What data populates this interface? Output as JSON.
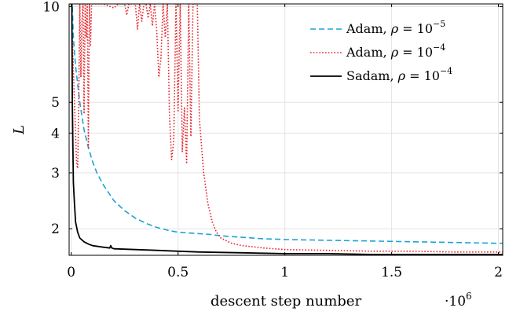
{
  "chart_data": {
    "type": "line",
    "title": "",
    "xlabel": "descent step number",
    "ylabel": "L",
    "x_multiplier": "·10⁶",
    "x_multiplier_base": "·10",
    "x_multiplier_exp": "6",
    "xlim": [
      -0.01,
      2.02
    ],
    "ylim": [
      1.65,
      10.2
    ],
    "yscale": "log",
    "grid": true,
    "legend_position": "top-right",
    "x_ticks": [
      0,
      0.5,
      1,
      1.5,
      2
    ],
    "x_tick_labels": [
      "0",
      "0.5",
      "1",
      "1.5",
      "2"
    ],
    "y_ticks": [
      2,
      3,
      4,
      5,
      10
    ],
    "y_tick_labels": [
      "2",
      "3",
      "4",
      "5",
      "10"
    ],
    "series": [
      {
        "name": "Adam, ρ = 10⁻⁵",
        "legend_prefix": "Adam, ",
        "legend_symbol": "ρ",
        "legend_base": " = 10",
        "legend_exp": "−5",
        "color": "#1ba3d6",
        "dash": "dashed",
        "x": [
          0.005,
          0.01,
          0.02,
          0.04,
          0.06,
          0.08,
          0.1,
          0.12,
          0.15,
          0.2,
          0.25,
          0.3,
          0.35,
          0.4,
          0.45,
          0.5,
          0.55,
          0.6,
          0.65,
          0.7,
          0.8,
          0.9,
          1.0,
          1.2,
          1.4,
          1.6,
          1.8,
          2.0,
          2.02
        ],
        "y": [
          10.0,
          8.0,
          6.5,
          5.0,
          4.1,
          3.6,
          3.25,
          3.0,
          2.75,
          2.45,
          2.28,
          2.16,
          2.08,
          2.02,
          1.98,
          1.95,
          1.94,
          1.93,
          1.92,
          1.9,
          1.88,
          1.86,
          1.85,
          1.84,
          1.83,
          1.82,
          1.81,
          1.8,
          1.8
        ]
      },
      {
        "name": "Adam, ρ = 10⁻⁴",
        "legend_prefix": "Adam, ",
        "legend_symbol": "ρ",
        "legend_base": " = 10",
        "legend_exp": "−4",
        "color": "#e8242b",
        "dash": "dotted",
        "x": [
          0.005,
          0.015,
          0.025,
          0.03,
          0.035,
          0.04,
          0.045,
          0.05,
          0.055,
          0.06,
          0.065,
          0.07,
          0.075,
          0.08,
          0.085,
          0.09,
          0.095,
          0.1,
          0.105,
          0.11,
          0.12,
          0.15,
          0.2,
          0.22,
          0.23,
          0.25,
          0.26,
          0.27,
          0.28,
          0.29,
          0.3,
          0.31,
          0.32,
          0.33,
          0.34,
          0.35,
          0.36,
          0.37,
          0.38,
          0.39,
          0.4,
          0.41,
          0.42,
          0.43,
          0.44,
          0.45,
          0.46,
          0.47,
          0.48,
          0.49,
          0.5,
          0.51,
          0.52,
          0.53,
          0.54,
          0.55,
          0.56,
          0.57,
          0.58,
          0.59,
          0.6,
          0.62,
          0.64,
          0.66,
          0.68,
          0.7,
          0.75,
          0.8,
          0.9,
          1.0,
          1.2,
          1.4,
          1.6,
          1.8,
          2.0,
          2.02
        ],
        "y": [
          8.0,
          5.0,
          3.2,
          3.1,
          5.0,
          10.2,
          6.0,
          9.0,
          10.2,
          4.6,
          10.2,
          8.0,
          10.2,
          3.6,
          10.2,
          7.5,
          10.2,
          10.2,
          10.2,
          10.2,
          10.2,
          10.2,
          9.9,
          10.2,
          10.2,
          10.2,
          9.4,
          10.2,
          10.2,
          10.2,
          10.2,
          8.5,
          10.2,
          9.0,
          10.2,
          10.2,
          9.2,
          10.2,
          8.7,
          10.2,
          8.4,
          6.0,
          6.9,
          10.2,
          8.0,
          10.2,
          4.5,
          3.3,
          3.8,
          10.2,
          4.7,
          10.2,
          3.5,
          4.8,
          3.2,
          10.2,
          3.9,
          10.2,
          10.2,
          10.2,
          4.4,
          3.0,
          2.4,
          2.1,
          1.95,
          1.87,
          1.8,
          1.77,
          1.74,
          1.72,
          1.71,
          1.7,
          1.7,
          1.69,
          1.69,
          1.69
        ]
      },
      {
        "name": "Sadam, ρ = 10⁻⁴",
        "legend_prefix": "Sadam, ",
        "legend_symbol": "ρ",
        "legend_base": " = 10",
        "legend_exp": "−4",
        "color": "#000000",
        "dash": "solid",
        "x": [
          0.003,
          0.005,
          0.008,
          0.01,
          0.015,
          0.02,
          0.03,
          0.04,
          0.06,
          0.08,
          0.1,
          0.15,
          0.18,
          0.185,
          0.19,
          0.2,
          0.3,
          0.4,
          0.5,
          0.6,
          0.8,
          1.0,
          1.2,
          1.4,
          1.6,
          1.8,
          2.0,
          2.02
        ],
        "y": [
          10.2,
          5.0,
          3.5,
          2.8,
          2.4,
          2.1,
          1.95,
          1.87,
          1.82,
          1.79,
          1.77,
          1.75,
          1.74,
          1.77,
          1.74,
          1.73,
          1.72,
          1.71,
          1.7,
          1.69,
          1.68,
          1.67,
          1.67,
          1.66,
          1.66,
          1.66,
          1.66,
          1.66
        ]
      }
    ]
  }
}
